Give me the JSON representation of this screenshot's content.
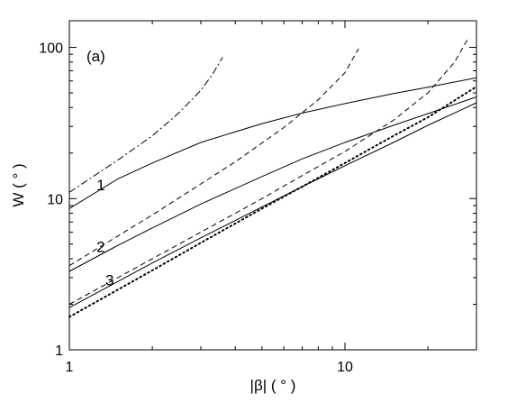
{
  "chart_data": {
    "type": "line",
    "panel_label": "(a)",
    "xlabel": "|β| ( ° )",
    "ylabel": "W ( ° )",
    "xscale": "log",
    "yscale": "log",
    "xlim": [
      1,
      30
    ],
    "ylim": [
      1,
      150
    ],
    "x_ticks": [
      1,
      10
    ],
    "x_tick_labels": [
      "1",
      "10"
    ],
    "y_ticks": [
      1,
      10,
      100
    ],
    "y_tick_labels": [
      "1",
      "10",
      "100"
    ],
    "grid": false,
    "curve_labels": [
      {
        "text": "1",
        "x": 1.3,
        "y": 12.3
      },
      {
        "text": "2",
        "x": 1.3,
        "y": 4.8
      },
      {
        "text": "3",
        "x": 1.4,
        "y": 2.9
      }
    ],
    "series": [
      {
        "style": "solid",
        "x": [
          1,
          1.5,
          2,
          3,
          5,
          7,
          10,
          15,
          20,
          30
        ],
        "y": [
          8.6,
          13.5,
          17.2,
          23.5,
          31.3,
          36.8,
          42.5,
          49.5,
          54.5,
          63
        ]
      },
      {
        "style": "dashdot",
        "x": [
          1,
          1.5,
          2,
          2.5,
          3,
          3.3,
          3.6
        ],
        "y": [
          11,
          18,
          26,
          37,
          52,
          66,
          86
        ]
      },
      {
        "style": "solid",
        "x": [
          1,
          1.5,
          2,
          3,
          5,
          7,
          10,
          15,
          20,
          30
        ],
        "y": [
          3.3,
          4.9,
          6.4,
          9.2,
          14,
          18.3,
          23.5,
          30.5,
          36.5,
          47
        ]
      },
      {
        "style": "dashed",
        "x": [
          1,
          2,
          3,
          4,
          6,
          8,
          10,
          11.2
        ],
        "y": [
          3.6,
          7.8,
          12.5,
          17.5,
          29.5,
          45,
          68,
          98
        ]
      },
      {
        "style": "solid",
        "x": [
          1,
          2,
          3,
          5,
          7,
          10,
          15,
          20,
          30
        ],
        "y": [
          1.9,
          3.75,
          5.5,
          8.8,
          12,
          16.5,
          23.5,
          30.5,
          43
        ]
      },
      {
        "style": "dashed",
        "x": [
          1,
          2,
          3,
          5,
          7,
          10,
          15,
          20,
          25,
          28
        ],
        "y": [
          2.0,
          4.0,
          6.0,
          10,
          14.2,
          20.5,
          33,
          50,
          80,
          115
        ]
      },
      {
        "style": "dotted",
        "x": [
          1,
          2,
          3,
          5,
          7,
          10,
          15,
          20,
          30
        ],
        "y": [
          1.65,
          3.35,
          5.1,
          8.6,
          12,
          17.2,
          26,
          34.5,
          55
        ]
      }
    ]
  }
}
